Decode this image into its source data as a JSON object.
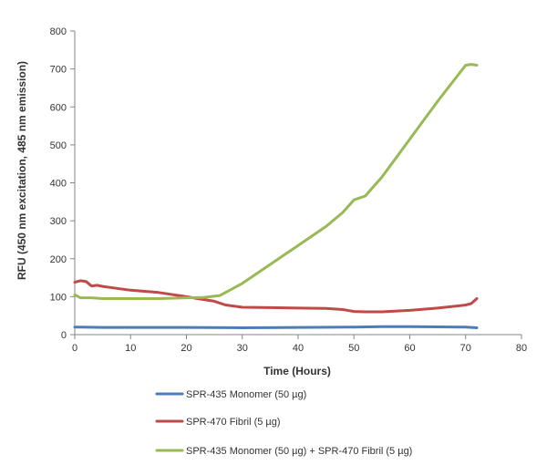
{
  "chart_data": {
    "type": "line",
    "title": "",
    "xlabel": "Time (Hours)",
    "ylabel": "RFU (450 nm excitation, 485 nm emission)",
    "xlim": [
      0,
      80
    ],
    "ylim": [
      0,
      800
    ],
    "xticks": [
      "0",
      "10",
      "20",
      "30",
      "40",
      "50",
      "60",
      "70",
      "80"
    ],
    "yticks": [
      "0",
      "100",
      "200",
      "300",
      "400",
      "500",
      "600",
      "700",
      "800"
    ],
    "grid": false,
    "legend_position": "bottom",
    "series": [
      {
        "name": "SPR-435 Monomer (50 µg)",
        "color": "#4a7ebb",
        "x": [
          0,
          1,
          5,
          10,
          20,
          30,
          40,
          50,
          55,
          60,
          70,
          72
        ],
        "y": [
          20,
          20,
          19,
          19,
          19,
          18,
          19,
          20,
          21,
          21,
          20,
          18
        ]
      },
      {
        "name": "SPR-470 Fibril (5 µg)",
        "color": "#be4b48",
        "x": [
          0,
          1,
          2,
          3,
          4,
          5,
          7,
          10,
          15,
          20,
          22,
          25,
          27,
          30,
          35,
          40,
          45,
          48,
          50,
          52,
          55,
          60,
          65,
          70,
          71,
          72
        ],
        "y": [
          138,
          142,
          140,
          128,
          130,
          127,
          123,
          117,
          111,
          100,
          95,
          88,
          78,
          72,
          71,
          70,
          69,
          66,
          61,
          60,
          60,
          64,
          70,
          78,
          82,
          95
        ]
      },
      {
        "name": "SPR-435 Monomer (50 µg) + SPR-470 Fibril (5 µg)",
        "color": "#98b954",
        "x": [
          0,
          1,
          3,
          5,
          10,
          15,
          20,
          23,
          26,
          30,
          35,
          40,
          45,
          48,
          50,
          52,
          55,
          60,
          65,
          70,
          71,
          72
        ],
        "y": [
          105,
          97,
          97,
          95,
          95,
          95,
          97,
          98,
          103,
          135,
          185,
          235,
          285,
          322,
          355,
          365,
          415,
          515,
          615,
          710,
          712,
          710
        ]
      }
    ]
  }
}
